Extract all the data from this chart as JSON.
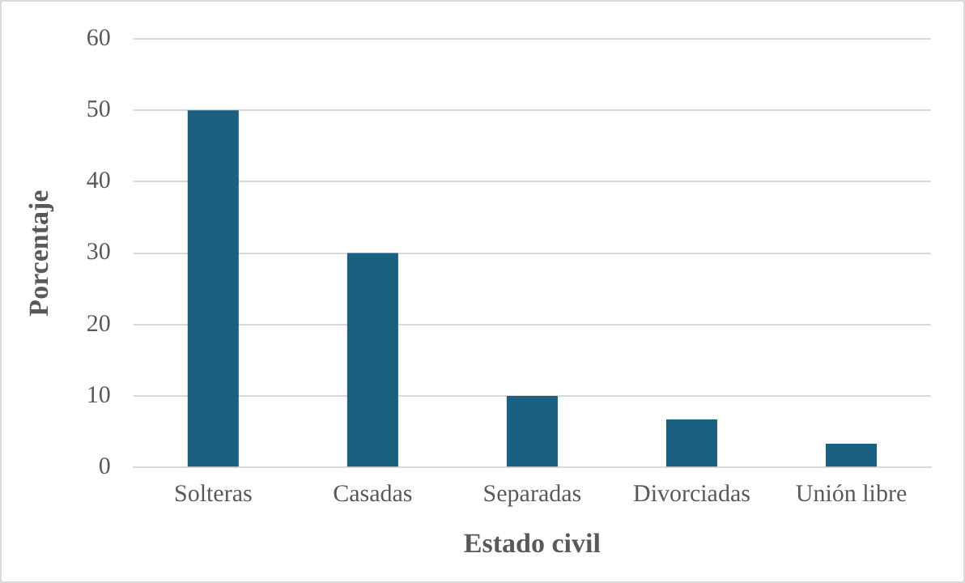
{
  "chart_data": {
    "type": "bar",
    "xlabel": "Estado civil",
    "ylabel": "Porcentaje",
    "categories": [
      "Solteras",
      "Casadas",
      "Separadas",
      "Divorciadas",
      "Unión libre"
    ],
    "values": [
      50,
      30,
      10,
      6.7,
      3.3
    ],
    "color": "#1a6080",
    "ylim": [
      0,
      60
    ],
    "yticks": [
      0,
      10,
      20,
      30,
      40,
      50,
      60
    ],
    "grid": "y",
    "legend": false
  }
}
